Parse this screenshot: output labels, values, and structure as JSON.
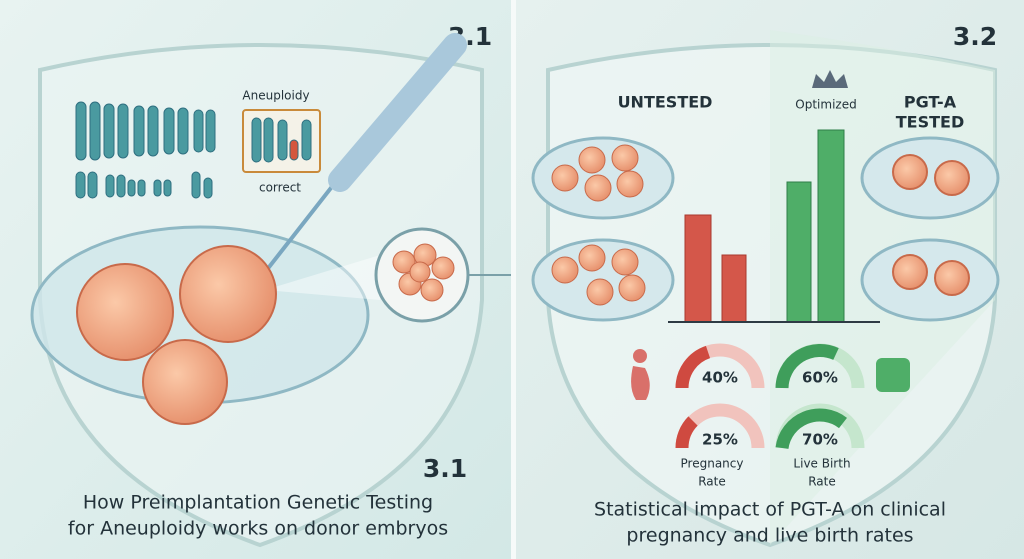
{
  "left": {
    "number_top": "3.1",
    "chromosome_box_title": "Aneuploidy",
    "chromosome_box_note": "correct",
    "number_bottom": "3.1",
    "caption": [
      "How Preimplantation Genetic Testing",
      "for Aneuploidy works on donor embryos"
    ]
  },
  "right": {
    "number_top": "3.2",
    "untested_label": "UNTESTED",
    "optimized_label": "Optimized",
    "tested_label": [
      "PGT-A",
      "TESTED"
    ],
    "gauges": [
      {
        "label": "40%"
      },
      {
        "label": "60%"
      },
      {
        "label": "25%"
      },
      {
        "label": "70%"
      }
    ],
    "pregnancy_label": [
      "Pregnancy",
      "Rate"
    ],
    "live_birth_label": [
      "Live Birth",
      "Rate"
    ],
    "caption": [
      "Statistical impact of PGT-A on clinical",
      "pregnancy and live birth rates"
    ]
  }
}
